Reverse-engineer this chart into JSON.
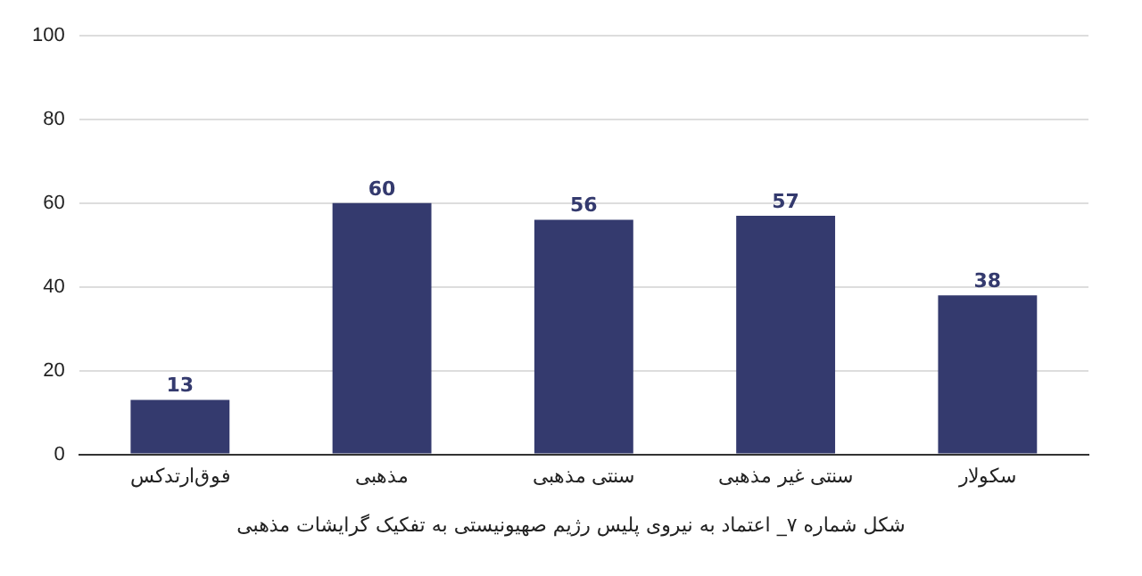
{
  "chart_data": {
    "type": "bar",
    "categories": [
      "فوق‌ارتدکس",
      "مذهبی",
      "سنتی مذهبی",
      "سنتی غیر مذهبی",
      "سکولار"
    ],
    "values": [
      13,
      60,
      56,
      57,
      38
    ],
    "color": "#343a6e",
    "ylim": [
      0,
      100
    ],
    "yticks": [
      0,
      20,
      40,
      60,
      80,
      100
    ],
    "grid": "y",
    "data_labels": true,
    "legend": false,
    "annotations": [
      "شکل شماره ۷_ اعتماد به نیروی پلیس رژیم صهیونیستی به تفکیک گرایشات مذهبی"
    ]
  }
}
